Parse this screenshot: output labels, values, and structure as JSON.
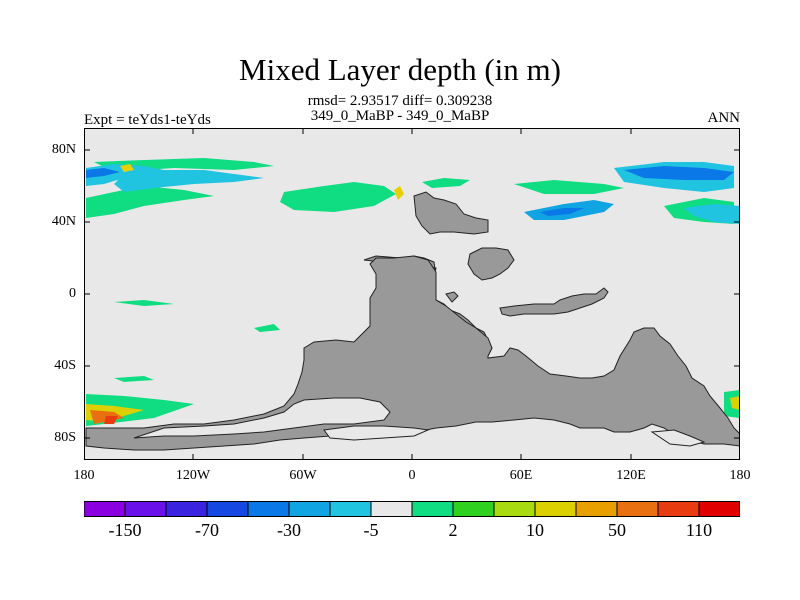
{
  "title": "Mixed Layer depth (in m)",
  "stats_line1": "rmsd= 2.93517 diff= 0.309238",
  "stats_line2": "349_0_MaBP - 349_0_MaBP",
  "experiment": "Expt = teYds1-teYds",
  "season": "ANN",
  "lat_labels": [
    "80N",
    "40N",
    "0",
    "40S",
    "80S"
  ],
  "lon_labels": [
    "180",
    "120W",
    "60W",
    "0",
    "60E",
    "120E",
    "180"
  ],
  "colorbar": {
    "colors": [
      "#8a00e0",
      "#6a10e8",
      "#3a24e0",
      "#1448e0",
      "#0a78e6",
      "#10a4e2",
      "#20c4e0",
      "#e8e8e8",
      "#10dc82",
      "#30d020",
      "#a8dc10",
      "#dcd000",
      "#e8a000",
      "#e87010",
      "#e83c10",
      "#e00000"
    ],
    "labels": [
      "-150",
      "-70",
      "-30",
      "-5",
      "2",
      "10",
      "50",
      "110"
    ]
  },
  "map": {
    "background_color": "#e8e8e8",
    "land_color": "#999999"
  }
}
